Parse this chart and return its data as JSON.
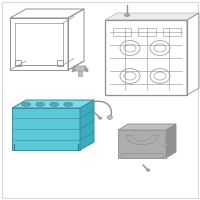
{
  "background_color": "#ffffff",
  "border_color": "#d8d8d8",
  "battery_color": "#5ac8d8",
  "battery_outline": "#3a8898",
  "battery_top_color": "#7adce8",
  "battery_side_color": "#3aacbc",
  "gray_color": "#c0c0c0",
  "gray_outline": "#909090",
  "gray_light": "#d8d8d8",
  "gray_dark": "#a0a0a0",
  "figsize": [
    2.0,
    2.0
  ],
  "dpi": 100
}
